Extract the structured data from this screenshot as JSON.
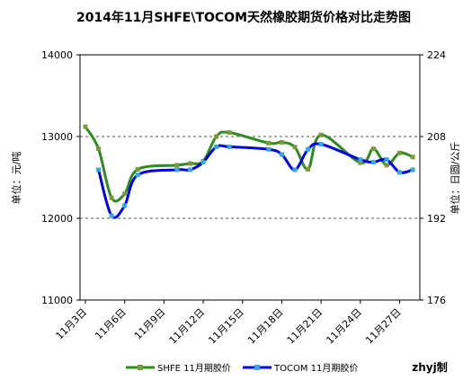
{
  "chart_data": {
    "type": "line",
    "title": "2014年11月SHFE\\TOCOM天然橡胶期货价格对比走势图",
    "ylabel_left": "单位：元/吨",
    "ylabel_right": "单位：日圆/公斤",
    "y_left": {
      "ticks": [
        "11000",
        "12000",
        "13000",
        "14000"
      ],
      "range": [
        11000,
        14000
      ]
    },
    "y_right": {
      "ticks": [
        "176",
        "192",
        "208",
        "224"
      ],
      "range": [
        176,
        224
      ]
    },
    "x_ticks": [
      "11月3日",
      "11月6日",
      "11月9日",
      "11月12日",
      "11月15日",
      "11月18日",
      "11月21日",
      "11月24日",
      "11月27日"
    ],
    "grid": "dashed horizontal at 12000 and 13000",
    "legend_position": "bottom",
    "series": [
      {
        "name": "SHFE 11月期胶价",
        "axis": "left",
        "color": "#2e8b1e",
        "marker_color": "#7a9a3a",
        "x": [
          "11/3",
          "11/4",
          "11/5",
          "11/6",
          "11/7",
          "11/10",
          "11/11",
          "11/12",
          "11/13",
          "11/14",
          "11/17",
          "11/18",
          "11/19",
          "11/20",
          "11/21",
          "11/24",
          "11/25",
          "11/26",
          "11/27",
          "11/28"
        ],
        "values": [
          13120,
          12850,
          12250,
          12300,
          12600,
          12650,
          12670,
          12700,
          13000,
          13050,
          12920,
          12930,
          12870,
          12600,
          13020,
          12680,
          12850,
          12650,
          12800,
          12750
        ]
      },
      {
        "name": "TOCOM 11月期胶价",
        "axis": "right",
        "color": "#0000ee",
        "marker_color": "#33aadd",
        "x": [
          "11/4",
          "11/5",
          "11/6",
          "11/7",
          "11/10",
          "11/11",
          "11/12",
          "11/13",
          "11/14",
          "11/17",
          "11/18",
          "11/19",
          "11/20",
          "11/21",
          "11/24",
          "11/25",
          "11/26",
          "11/27",
          "11/28"
        ],
        "values": [
          201.5,
          192.5,
          194.5,
          200.5,
          201.5,
          201.5,
          203.0,
          206.0,
          206.0,
          205.5,
          204.5,
          201.5,
          205.5,
          206.5,
          203.5,
          203.0,
          203.5,
          201.0,
          201.5
        ]
      }
    ],
    "credit": "zhyj制"
  }
}
